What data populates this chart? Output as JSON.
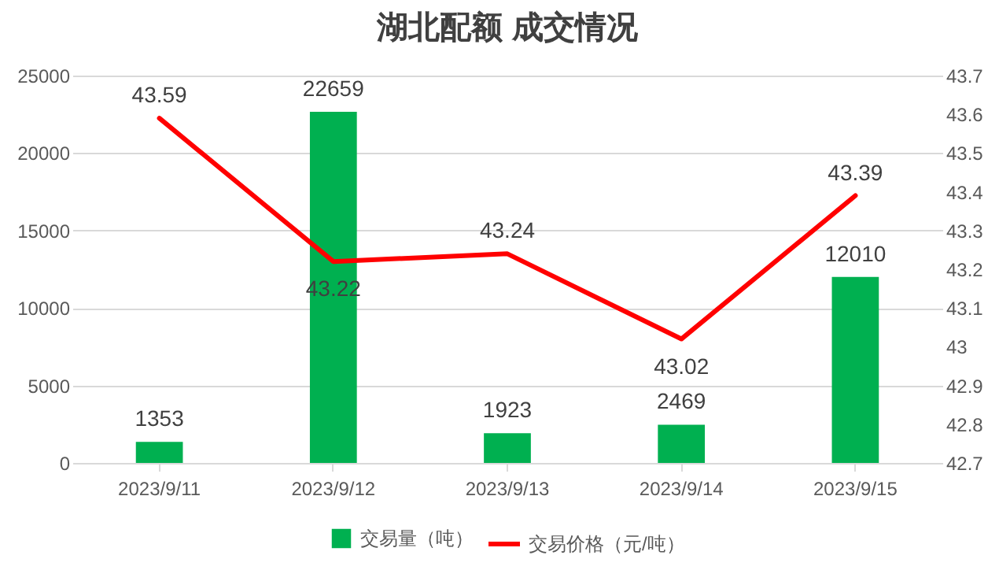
{
  "chart_data": {
    "type": "bar",
    "title": "湖北配额 成交情况",
    "categories": [
      "2023/9/11",
      "2023/9/12",
      "2023/9/13",
      "2023/9/14",
      "2023/9/15"
    ],
    "series": [
      {
        "name": "交易量（吨）",
        "color": "#00b050",
        "values": [
          1353,
          22659,
          1923,
          2469,
          12010
        ]
      },
      {
        "name": "交易价格（元/吨）",
        "type": "line",
        "axis": "y2",
        "color": "#ff0000",
        "values": [
          43.59,
          43.22,
          43.24,
          43.02,
          43.39
        ]
      }
    ],
    "ylim": [
      0,
      25000
    ],
    "yticks": [
      0,
      5000,
      10000,
      15000,
      20000,
      25000
    ],
    "y2lim": [
      42.7,
      43.7
    ],
    "y2ticks": [
      42.7,
      42.8,
      42.9,
      43,
      43.1,
      43.2,
      43.3,
      43.4,
      43.5,
      43.6,
      43.7
    ],
    "grid": "y",
    "legend": "bottom",
    "data_labels": true
  }
}
